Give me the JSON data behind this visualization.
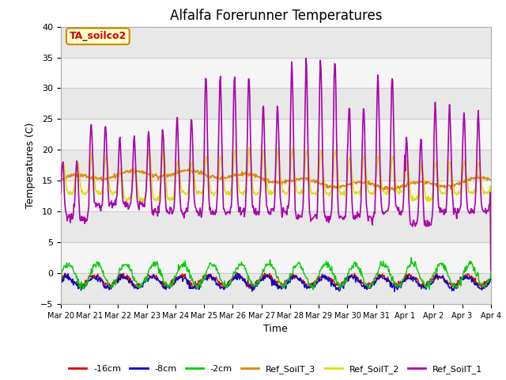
{
  "title": "Alfalfa Forerunner Temperatures",
  "xlabel": "Time",
  "ylabel": "Temperatures (C)",
  "ylim": [
    -5,
    40
  ],
  "yticks": [
    -5,
    0,
    5,
    10,
    15,
    20,
    25,
    30,
    35,
    40
  ],
  "date_labels": [
    "Mar 20",
    "Mar 21",
    "Mar 22",
    "Mar 23",
    "Mar 24",
    "Mar 25",
    "Mar 26",
    "Mar 27",
    "Mar 28",
    "Mar 29",
    "Mar 30",
    "Mar 31",
    "Apr 1",
    "Apr 2",
    "Apr 3",
    "Apr 4"
  ],
  "annotation_text": "TA_soilco2",
  "annotation_color": "#cc0000",
  "annotation_bg": "#ffffcc",
  "annotation_border": "#cc8800",
  "colors": {
    "neg16cm": "#dd0000",
    "neg8cm": "#0000cc",
    "neg2cm": "#00cc00",
    "ref3": "#dd8800",
    "ref2": "#dddd00",
    "ref1": "#aa00aa"
  },
  "legend_labels": [
    "-16cm",
    "-8cm",
    "-2cm",
    "Ref_SoilT_3",
    "Ref_SoilT_2",
    "Ref_SoilT_1"
  ],
  "band_ranges": [
    [
      -5,
      0
    ],
    [
      5,
      10
    ],
    [
      15,
      20
    ],
    [
      25,
      30
    ],
    [
      35,
      40
    ]
  ],
  "band_color": "#e8e8e8",
  "plot_bg": "#f5f5f5",
  "n_days": 15,
  "pts_per_day": 48
}
